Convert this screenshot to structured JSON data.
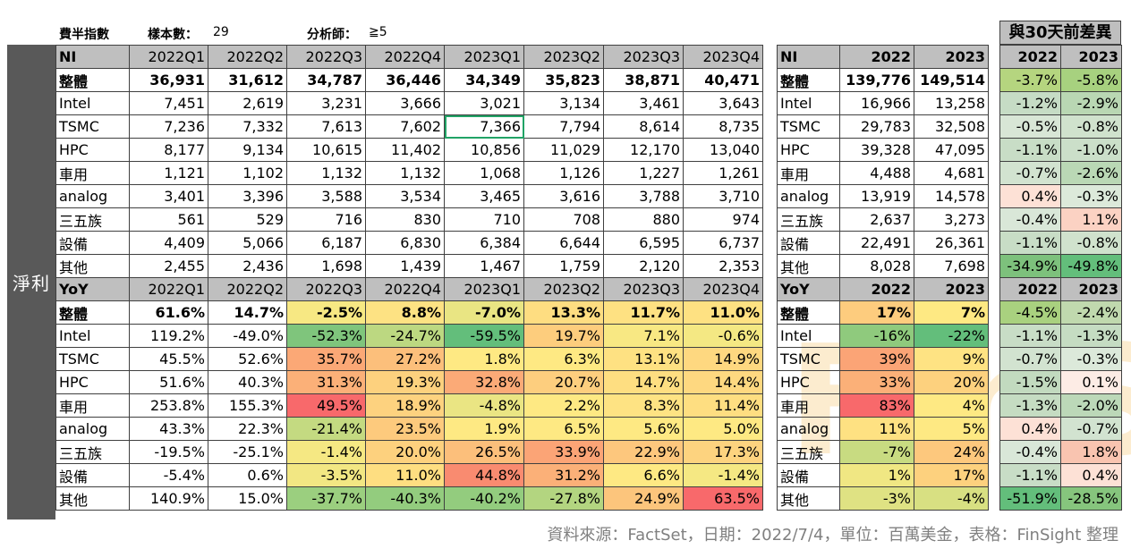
{
  "header": {
    "index_label": "費半指數",
    "sample_label": "樣本數：",
    "sample_value": "29",
    "analyst_label": "分析師：",
    "analyst_value": "≧5",
    "diff_title": "與30天前差異"
  },
  "side_label": "淨利",
  "watermark": "FinSight",
  "source": "資料來源：FactSet，日期：2022/7/4，單位：百萬美金，表格：FinSight 整理",
  "ni_header": [
    "NI",
    "2022Q1",
    "2022Q2",
    "2022Q3",
    "2022Q4",
    "2023Q1",
    "2023Q2",
    "2023Q3",
    "2023Q4"
  ],
  "ni_rows": [
    {
      "label": "整體",
      "values": [
        "36,931",
        "31,612",
        "34,787",
        "36,446",
        "34,349",
        "35,823",
        "38,871",
        "40,471"
      ]
    },
    {
      "label": "Intel",
      "values": [
        "7,451",
        "2,619",
        "3,231",
        "3,666",
        "3,021",
        "3,134",
        "3,461",
        "3,643"
      ]
    },
    {
      "label": "TSMC",
      "values": [
        "7,236",
        "7,332",
        "7,613",
        "7,602",
        "7,366",
        "7,794",
        "8,614",
        "8,735"
      ]
    },
    {
      "label": "HPC",
      "values": [
        "8,177",
        "9,134",
        "10,615",
        "11,402",
        "10,856",
        "11,029",
        "12,170",
        "13,040"
      ]
    },
    {
      "label": "車用",
      "values": [
        "1,121",
        "1,102",
        "1,132",
        "1,132",
        "1,068",
        "1,126",
        "1,227",
        "1,261"
      ]
    },
    {
      "label": "analog",
      "values": [
        "3,401",
        "3,396",
        "3,588",
        "3,534",
        "3,465",
        "3,616",
        "3,788",
        "3,710"
      ]
    },
    {
      "label": "三五族",
      "values": [
        "561",
        "529",
        "716",
        "830",
        "710",
        "708",
        "880",
        "974"
      ]
    },
    {
      "label": "設備",
      "values": [
        "4,409",
        "5,066",
        "6,187",
        "6,830",
        "6,384",
        "6,644",
        "6,595",
        "6,737"
      ]
    },
    {
      "label": "其他",
      "values": [
        "2,455",
        "2,436",
        "1,698",
        "1,439",
        "1,467",
        "1,759",
        "2,120",
        "2,353"
      ]
    }
  ],
  "yoy_header": [
    "YoY",
    "2022Q1",
    "2022Q2",
    "2022Q3",
    "2022Q4",
    "2023Q1",
    "2023Q2",
    "2023Q3",
    "2023Q4"
  ],
  "yoy_rows": [
    {
      "label": "整體",
      "values": [
        "61.6%",
        "14.7%",
        "-2.5%",
        "8.8%",
        "-7.0%",
        "13.3%",
        "11.7%",
        "11.0%"
      ],
      "colors": [
        "#ffffff",
        "#ffffff",
        "#f7e883",
        "#fde283",
        "#e9e583",
        "#fedd81",
        "#fee182",
        "#fee182"
      ]
    },
    {
      "label": "Intel",
      "values": [
        "119.2%",
        "-49.0%",
        "-52.3%",
        "-24.7%",
        "-59.5%",
        "19.7%",
        "7.1%",
        "-0.6%"
      ],
      "colors": [
        "#ffffff",
        "#ffffff",
        "#7fc57c",
        "#bcd881",
        "#63be7b",
        "#fdcd7d",
        "#f8e883",
        "#f4e883"
      ]
    },
    {
      "label": "TSMC",
      "values": [
        "45.5%",
        "52.6%",
        "35.7%",
        "27.2%",
        "1.8%",
        "6.3%",
        "13.1%",
        "14.9%"
      ],
      "colors": [
        "#ffffff",
        "#ffffff",
        "#fba876",
        "#fcbf7b",
        "#fee983",
        "#fee983",
        "#fee182",
        "#fed880"
      ]
    },
    {
      "label": "HPC",
      "values": [
        "51.6%",
        "40.3%",
        "31.3%",
        "19.3%",
        "32.8%",
        "20.7%",
        "14.7%",
        "14.4%"
      ],
      "colors": [
        "#ffffff",
        "#ffffff",
        "#fbb078",
        "#fdd17e",
        "#fbaa77",
        "#fdce7e",
        "#fede81",
        "#fed880"
      ]
    },
    {
      "label": "車用",
      "values": [
        "253.8%",
        "155.3%",
        "49.5%",
        "18.9%",
        "-4.8%",
        "2.2%",
        "8.3%",
        "11.4%"
      ],
      "colors": [
        "#ffffff",
        "#ffffff",
        "#f8696b",
        "#fdd27f",
        "#eae583",
        "#fee983",
        "#fee383",
        "#fede81"
      ]
    },
    {
      "label": "analog",
      "values": [
        "43.3%",
        "22.3%",
        "-21.4%",
        "23.5%",
        "1.9%",
        "6.5%",
        "5.6%",
        "5.0%"
      ],
      "colors": [
        "#ffffff",
        "#ffffff",
        "#c4da81",
        "#fdca7d",
        "#fee983",
        "#fee983",
        "#fee983",
        "#fee983"
      ]
    },
    {
      "label": "三五族",
      "values": [
        "-19.5%",
        "-25.1%",
        "-1.4%",
        "20.0%",
        "26.5%",
        "33.9%",
        "22.9%",
        "17.3%"
      ],
      "colors": [
        "#ffffff",
        "#ffffff",
        "#f5e883",
        "#fdd17e",
        "#fcbf7b",
        "#fba476",
        "#fdc77d",
        "#fdd37f"
      ]
    },
    {
      "label": "設備",
      "values": [
        "-5.4%",
        "0.6%",
        "-3.5%",
        "11.0%",
        "44.8%",
        "31.2%",
        "6.6%",
        "-1.4%"
      ],
      "colors": [
        "#ffffff",
        "#ffffff",
        "#f2e783",
        "#fede81",
        "#f98b70",
        "#fbb078",
        "#fee983",
        "#f5e883"
      ]
    },
    {
      "label": "其他",
      "values": [
        "140.9%",
        "15.0%",
        "-37.7%",
        "-40.3%",
        "-40.2%",
        "-27.8%",
        "24.9%",
        "63.5%"
      ],
      "colors": [
        "#ffffff",
        "#ffffff",
        "#9bcf7f",
        "#93cc7e",
        "#93cc7e",
        "#b3d580",
        "#fcc57c",
        "#f8696b"
      ]
    }
  ],
  "ni_year_header": [
    "NI",
    "2022",
    "2023"
  ],
  "ni_year_rows": [
    {
      "label": "整體",
      "values": [
        "139,776",
        "149,514"
      ]
    },
    {
      "label": "Intel",
      "values": [
        "16,966",
        "13,258"
      ]
    },
    {
      "label": "TSMC",
      "values": [
        "29,783",
        "32,508"
      ]
    },
    {
      "label": "HPC",
      "values": [
        "39,328",
        "47,095"
      ]
    },
    {
      "label": "車用",
      "values": [
        "4,488",
        "4,681"
      ]
    },
    {
      "label": "analog",
      "values": [
        "13,919",
        "14,578"
      ]
    },
    {
      "label": "三五族",
      "values": [
        "2,637",
        "3,273"
      ]
    },
    {
      "label": "設備",
      "values": [
        "22,491",
        "26,361"
      ]
    },
    {
      "label": "其他",
      "values": [
        "8,028",
        "7,698"
      ]
    }
  ],
  "yoy_year_header": [
    "YoY",
    "2022",
    "2023"
  ],
  "yoy_year_rows": [
    {
      "label": "整體",
      "values": [
        "17%",
        "7%"
      ],
      "colors": [
        "#fdcc7e",
        "#fee983"
      ]
    },
    {
      "label": "Intel",
      "values": [
        "-16%",
        "-22%"
      ],
      "colors": [
        "#8fca7d",
        "#63be7b"
      ]
    },
    {
      "label": "TSMC",
      "values": [
        "39%",
        "9%"
      ],
      "colors": [
        "#fba476",
        "#fee383"
      ]
    },
    {
      "label": "HPC",
      "values": [
        "33%",
        "20%"
      ],
      "colors": [
        "#fbb078",
        "#fdd17e"
      ]
    },
    {
      "label": "車用",
      "values": [
        "83%",
        "4%"
      ],
      "colors": [
        "#f8696b",
        "#fee983"
      ]
    },
    {
      "label": "analog",
      "values": [
        "11%",
        "5%"
      ],
      "colors": [
        "#fee182",
        "#fee983"
      ]
    },
    {
      "label": "三五族",
      "values": [
        "-7%",
        "24%"
      ],
      "colors": [
        "#c8db81",
        "#fdc87d"
      ]
    },
    {
      "label": "設備",
      "values": [
        "1%",
        "17%"
      ],
      "colors": [
        "#f0e783",
        "#fdd17e"
      ]
    },
    {
      "label": "其他",
      "values": [
        "-3%",
        "-4%"
      ],
      "colors": [
        "#dfe283",
        "#d8e082"
      ]
    }
  ],
  "diff_ni_header": [
    "2022",
    "2023"
  ],
  "diff_ni_rows": [
    {
      "values": [
        "-3.7%",
        "-5.8%"
      ],
      "colors": [
        "#b5d57f",
        "#a7d17f"
      ]
    },
    {
      "values": [
        "-1.2%",
        "-2.9%"
      ],
      "colors": [
        "#c6dcc5",
        "#b9d7b3"
      ]
    },
    {
      "values": [
        "-0.5%",
        "-0.8%"
      ],
      "colors": [
        "#d8e6d6",
        "#d0e2cd"
      ]
    },
    {
      "values": [
        "-1.1%",
        "-1.0%"
      ],
      "colors": [
        "#c8ddc6",
        "#cbdfc9"
      ]
    },
    {
      "values": [
        "-0.7%",
        "-2.6%"
      ],
      "colors": [
        "#d2e3d0",
        "#bad8b5"
      ]
    },
    {
      "values": [
        "0.4%",
        "-0.3%"
      ],
      "colors": [
        "#fde1d6",
        "#dce9da"
      ]
    },
    {
      "values": [
        "-0.4%",
        "1.1%"
      ],
      "colors": [
        "#d9e7d8",
        "#fbd2c3"
      ]
    },
    {
      "values": [
        "-1.1%",
        "-0.8%"
      ],
      "colors": [
        "#c8ddc6",
        "#d0e2cd"
      ]
    },
    {
      "values": [
        "-34.9%",
        "-49.8%"
      ],
      "colors": [
        "#7dc17c",
        "#63be7b"
      ]
    }
  ],
  "diff_yoy_header": [
    "2022",
    "2023"
  ],
  "diff_yoy_rows": [
    {
      "values": [
        "-4.5%",
        "-2.4%"
      ],
      "colors": [
        "#a9d17f",
        "#c0d9ae"
      ]
    },
    {
      "values": [
        "-1.1%",
        "-1.3%"
      ],
      "colors": [
        "#c8ddc6",
        "#c5dcc2"
      ]
    },
    {
      "values": [
        "-0.7%",
        "-0.3%"
      ],
      "colors": [
        "#d2e3d0",
        "#dce9da"
      ]
    },
    {
      "values": [
        "-1.5%",
        "0.1%"
      ],
      "colors": [
        "#c2dabf",
        "#fdece5"
      ]
    },
    {
      "values": [
        "-1.3%",
        "-2.0%"
      ],
      "colors": [
        "#c5dcc2",
        "#bcd8b8"
      ]
    },
    {
      "values": [
        "0.4%",
        "-0.7%"
      ],
      "colors": [
        "#fde1d6",
        "#d2e3d0"
      ]
    },
    {
      "values": [
        "-0.4%",
        "1.8%"
      ],
      "colors": [
        "#d9e7d8",
        "#f9c4b0"
      ]
    },
    {
      "values": [
        "-1.1%",
        "0.4%"
      ],
      "colors": [
        "#c8ddc6",
        "#fde1d6"
      ]
    },
    {
      "values": [
        "-51.9%",
        "-28.5%"
      ],
      "colors": [
        "#63be7b",
        "#86c57d"
      ]
    }
  ]
}
